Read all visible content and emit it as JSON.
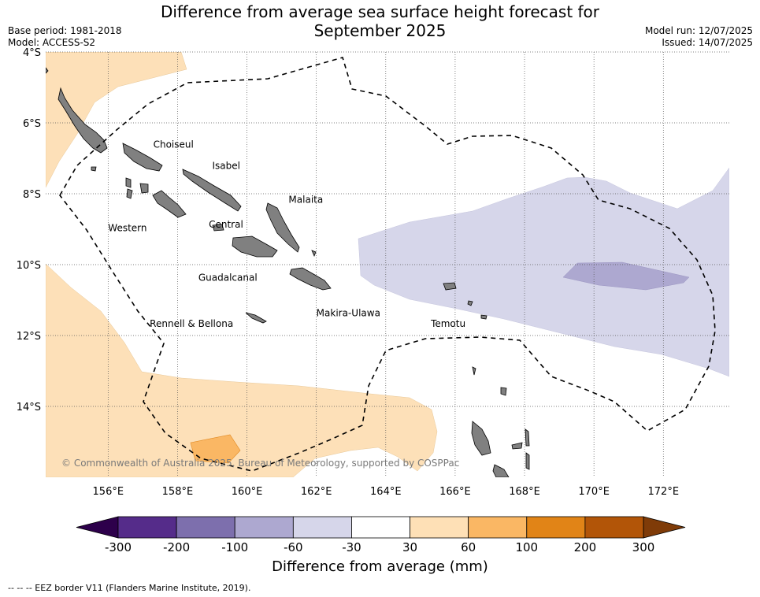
{
  "title": {
    "line1": "Difference from average sea surface height forecast for",
    "line2": "September 2025"
  },
  "meta": {
    "base_period": "Base period: 1981-2018",
    "model": "Model: ACCESS-S2",
    "model_run": "Model run: 12/07/2025",
    "issued": "Issued: 14/07/2025"
  },
  "map": {
    "lon_range": [
      154.2,
      173.9
    ],
    "lat_range": [
      -16.0,
      -4.0
    ],
    "lat_ticks": [
      {
        "value": -4,
        "label": "4°S"
      },
      {
        "value": -6,
        "label": "6°S"
      },
      {
        "value": -8,
        "label": "8°S"
      },
      {
        "value": -10,
        "label": "10°S"
      },
      {
        "value": -12,
        "label": "12°S"
      },
      {
        "value": -14,
        "label": "14°S"
      }
    ],
    "lon_ticks": [
      {
        "value": 156,
        "label": "156°E"
      },
      {
        "value": 158,
        "label": "158°E"
      },
      {
        "value": 160,
        "label": "160°E"
      },
      {
        "value": 162,
        "label": "162°E"
      },
      {
        "value": 164,
        "label": "164°E"
      },
      {
        "value": 166,
        "label": "166°E"
      },
      {
        "value": 168,
        "label": "168°E"
      },
      {
        "value": 170,
        "label": "170°E"
      },
      {
        "value": 172,
        "label": "172°E"
      }
    ],
    "grid": true,
    "province_labels": [
      {
        "name": "Choiseul",
        "lon": 157.3,
        "lat": -6.7
      },
      {
        "name": "Isabel",
        "lon": 159.0,
        "lat": -7.3
      },
      {
        "name": "Malaita",
        "lon": 161.2,
        "lat": -8.25
      },
      {
        "name": "Western",
        "lon": 156.0,
        "lat": -9.05
      },
      {
        "name": "Central",
        "lon": 158.9,
        "lat": -8.95
      },
      {
        "name": "Guadalcanal",
        "lon": 158.6,
        "lat": -10.45
      },
      {
        "name": "Makira-Ulawa",
        "lon": 162.0,
        "lat": -11.45
      },
      {
        "name": "Rennell & Bellona",
        "lon": 157.2,
        "lat": -11.75
      },
      {
        "name": "Temotu",
        "lon": 165.3,
        "lat": -11.75
      }
    ],
    "copyright": "© Commonwealth of Australia 2025, Bureau of Meteorology, supported by COSPPac"
  },
  "colorbar": {
    "title": "Difference from average (mm)",
    "ticks": [
      "-300",
      "-200",
      "-100",
      "-60",
      "-30",
      "30",
      "60",
      "100",
      "200",
      "300"
    ],
    "colors": [
      "#552c8a",
      "#7d6fad",
      "#ada8d0",
      "#d6d6ea",
      "#ffffff",
      "#fee0b6",
      "#fab764",
      "#e18417",
      "#b25508"
    ],
    "under_color": "#2d004b",
    "over_color": "#7f3b08"
  },
  "legend_footer": "--  --  -- EEZ border V11 (Flanders Marine Institute, 2019)."
}
